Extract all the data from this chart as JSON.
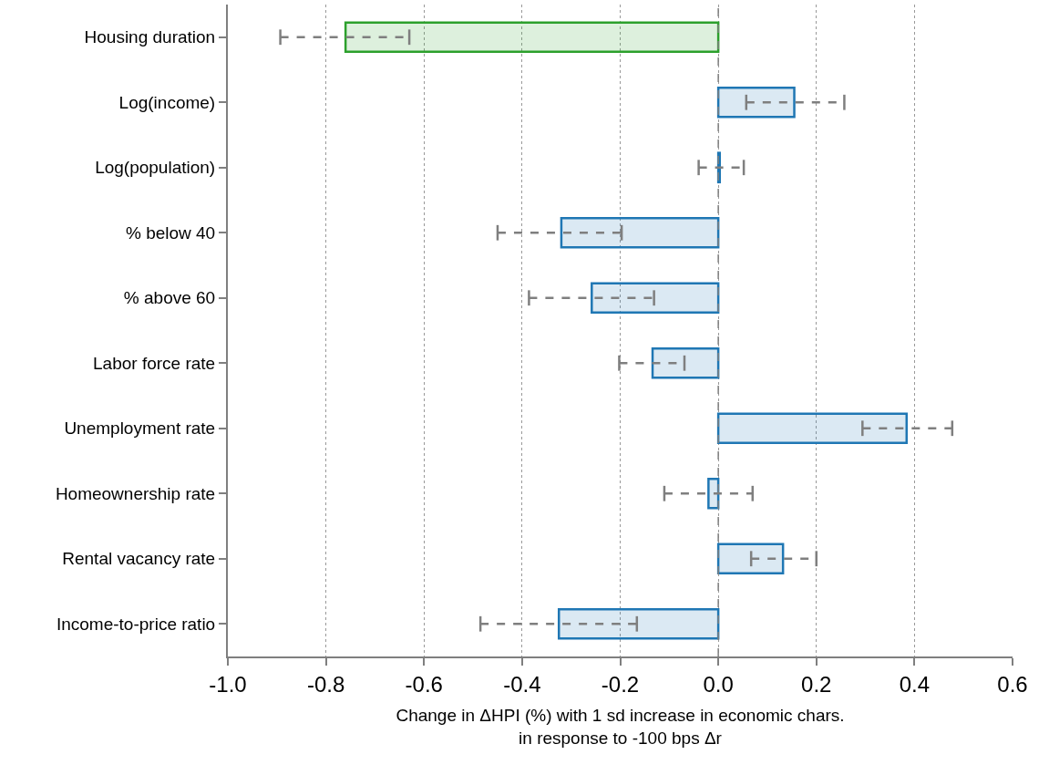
{
  "chart_data": {
    "type": "bar",
    "orientation": "horizontal",
    "xlabel": "Change in ΔHPI (%) with 1 sd increase in economic chars.\nin response to -100 bps Δr",
    "categories": [
      "Housing duration",
      "Log(income)",
      "Log(population)",
      "% below 40",
      "% above 60",
      "Labor force rate",
      "Unemployment rate",
      "Homeownership rate",
      "Rental vacancy rate",
      "Income-to-price ratio"
    ],
    "values": [
      -0.76,
      0.155,
      0.003,
      -0.32,
      -0.258,
      -0.134,
      0.384,
      -0.02,
      0.132,
      -0.325
    ],
    "errors": [
      [
        -0.893,
        -0.63
      ],
      [
        0.057,
        0.257
      ],
      [
        -0.04,
        0.052
      ],
      [
        -0.45,
        -0.197
      ],
      [
        -0.386,
        -0.131
      ],
      [
        -0.202,
        -0.069
      ],
      [
        0.294,
        0.477
      ],
      [
        -0.11,
        0.07
      ],
      [
        0.067,
        0.2
      ],
      [
        -0.485,
        -0.166
      ]
    ],
    "colors": [
      "#2ca02c",
      "#1f77b4",
      "#1f77b4",
      "#1f77b4",
      "#1f77b4",
      "#1f77b4",
      "#1f77b4",
      "#1f77b4",
      "#1f77b4",
      "#1f77b4"
    ],
    "xlim": [
      -1.0,
      0.6
    ],
    "xticks": [
      {
        "value": -1.0,
        "label": "-1.0"
      },
      {
        "value": -0.8,
        "label": "-0.8"
      },
      {
        "value": -0.6,
        "label": "-0.6"
      },
      {
        "value": -0.4,
        "label": "-0.4"
      },
      {
        "value": -0.2,
        "label": "-0.2"
      },
      {
        "value": 0.0,
        "label": "0.0"
      },
      {
        "value": 0.2,
        "label": "0.2"
      },
      {
        "value": 0.4,
        "label": "0.4"
      },
      {
        "value": 0.6,
        "label": "0.6"
      }
    ],
    "ref_lines": [
      {
        "axis": "x",
        "value": 0,
        "color": "#7f7f7f",
        "line_style": "dashed"
      }
    ],
    "grid": "x"
  }
}
